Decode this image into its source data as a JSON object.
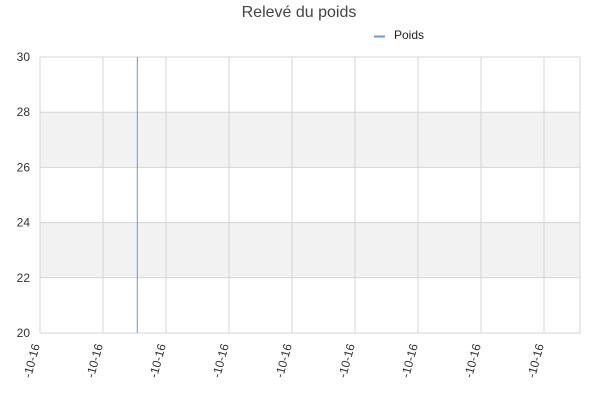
{
  "chart_data": {
    "type": "line",
    "title": "Relevé du poids",
    "legend": {
      "position": "top-right"
    },
    "series": [
      {
        "name": "Poids",
        "color": "#6699dd",
        "points": [
          {
            "x": 1.55,
            "y": 20
          },
          {
            "x": 1.55,
            "y": 30
          }
        ]
      }
    ],
    "x_ticks": [
      "-10-16",
      "-10-16",
      "-10-16",
      "-10-16",
      "-10-16",
      "-10-16",
      "-10-16",
      "-10-16",
      "-10-16"
    ],
    "xlim": [
      0,
      8.6
    ],
    "ylim": [
      20,
      30
    ],
    "y_ticks": [
      20,
      22,
      24,
      26,
      28,
      30
    ],
    "grid": true,
    "band_color": "#f2f2f2",
    "grid_color": "#d4d4d4"
  }
}
